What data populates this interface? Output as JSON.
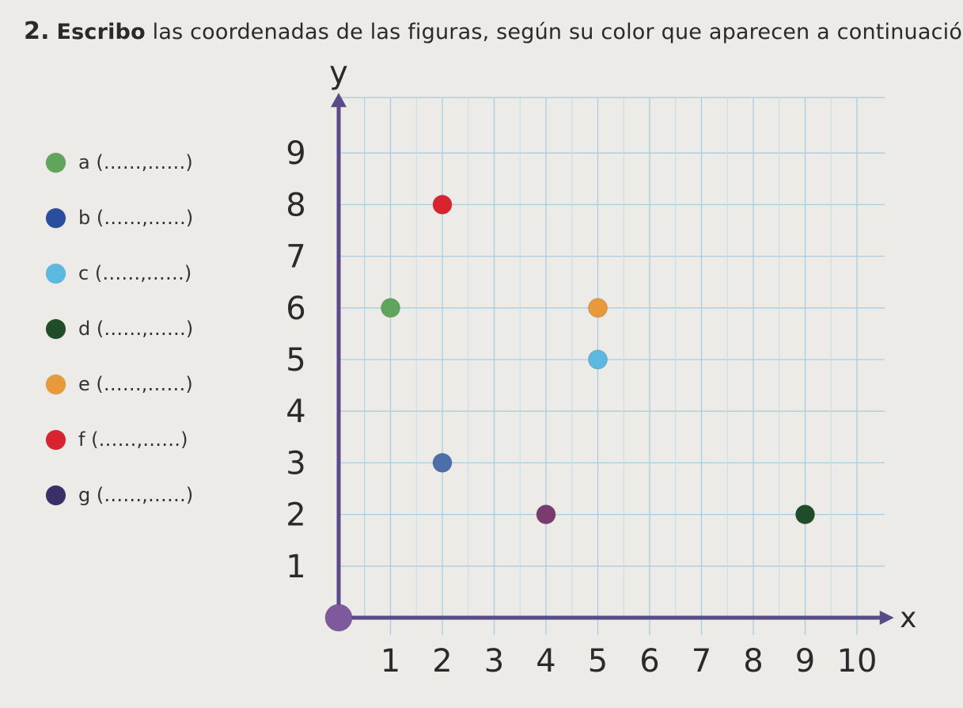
{
  "title": {
    "number": "2.",
    "bold_word": "Escribo",
    "rest": "las coordenadas de las figuras, según su color que aparecen a continuación."
  },
  "legend": [
    {
      "letter": "a",
      "template": "a (……,……)",
      "color": "#5fa65c"
    },
    {
      "letter": "b",
      "template": "b (……,……)",
      "color": "#2a4d9e"
    },
    {
      "letter": "c",
      "template": "c (……,……)",
      "color": "#5db8e0"
    },
    {
      "letter": "d",
      "template": "d (……,……)",
      "color": "#1f4d2a"
    },
    {
      "letter": "e",
      "template": "e (……,……)",
      "color": "#e89a3a"
    },
    {
      "letter": "f",
      "template": "f  (……,……)",
      "color": "#d8242f"
    },
    {
      "letter": "g",
      "template": "g (……,……)",
      "color": "#3a2f66"
    }
  ],
  "chart_data": {
    "type": "scatter",
    "title": "",
    "xlabel": "x",
    "ylabel": "y",
    "xlim": [
      0,
      10
    ],
    "ylim": [
      0,
      9
    ],
    "x_ticks": [
      "1",
      "2",
      "3",
      "4",
      "5",
      "6",
      "7",
      "8",
      "9",
      "10"
    ],
    "y_ticks": [
      "1",
      "2",
      "3",
      "4",
      "5",
      "6",
      "7",
      "8",
      "9"
    ],
    "grid": true,
    "points": [
      {
        "x": 1,
        "y": 6,
        "color": "#5fa65c"
      },
      {
        "x": 2,
        "y": 8,
        "color": "#d8242f"
      },
      {
        "x": 2,
        "y": 3,
        "color": "#4c6fa8"
      },
      {
        "x": 4,
        "y": 2,
        "color": "#7a3b6f"
      },
      {
        "x": 5,
        "y": 6,
        "color": "#e89a3a"
      },
      {
        "x": 5,
        "y": 5,
        "color": "#5db8e0"
      },
      {
        "x": 9,
        "y": 2,
        "color": "#1f4d2a"
      },
      {
        "x": 0,
        "y": 0,
        "color": "#7e5a9c"
      }
    ],
    "axis_color": "#5a4a8a"
  }
}
